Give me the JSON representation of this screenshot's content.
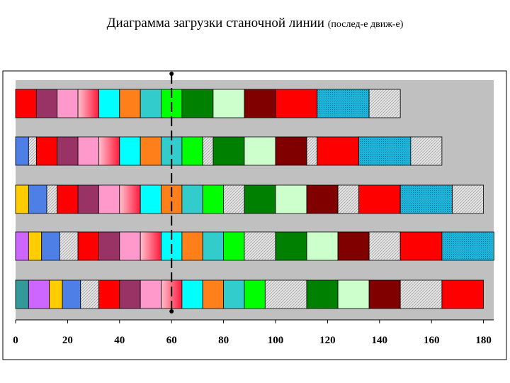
{
  "title": {
    "main": "Диаграмма загрузки станочной линии",
    "sub": "(послед-е движ-е)"
  },
  "chart_data": {
    "type": "bar",
    "orientation": "horizontal-stacked",
    "xlim": [
      0,
      180
    ],
    "xticks": [
      "0",
      "20",
      "40",
      "60",
      "80",
      "100",
      "120",
      "140",
      "160",
      "180"
    ],
    "marker_x": 60,
    "plot_background": "#c0c0c0",
    "rows": [
      {
        "segments": [
          {
            "start": 0,
            "end": 8,
            "color": "#ff0000",
            "pattern": "solid"
          },
          {
            "start": 8,
            "end": 16,
            "color": "#993366",
            "pattern": "solid"
          },
          {
            "start": 16,
            "end": 24,
            "color": "#ff99cc",
            "pattern": "solid"
          },
          {
            "start": 24,
            "end": 32,
            "color": "#ff4d6a",
            "pattern": "gradient"
          },
          {
            "start": 32,
            "end": 40,
            "color": "#00ffff",
            "pattern": "solid"
          },
          {
            "start": 40,
            "end": 48,
            "color": "#ff7f1a",
            "pattern": "solid"
          },
          {
            "start": 48,
            "end": 56,
            "color": "#33cccc",
            "pattern": "solid"
          },
          {
            "start": 56,
            "end": 64,
            "color": "#00ff00",
            "pattern": "solid"
          },
          {
            "start": 64,
            "end": 76,
            "color": "#008000",
            "pattern": "solid"
          },
          {
            "start": 76,
            "end": 88,
            "color": "#ccffcc",
            "pattern": "solid"
          },
          {
            "start": 88,
            "end": 100,
            "color": "#800000",
            "pattern": "solid"
          },
          {
            "start": 100,
            "end": 116,
            "color": "#ff0000",
            "pattern": "solid"
          },
          {
            "start": 116,
            "end": 136,
            "color": "#1ab3d9",
            "pattern": "dotted"
          },
          {
            "start": 136,
            "end": 148,
            "color": "#ff8080",
            "pattern": "hatched"
          }
        ]
      },
      {
        "segments": [
          {
            "start": 0,
            "end": 5,
            "color": "#4d7fe6",
            "pattern": "solid"
          },
          {
            "start": 5,
            "end": 8,
            "color": "#dddddd",
            "pattern": "hatched"
          },
          {
            "start": 8,
            "end": 16,
            "color": "#ff0000",
            "pattern": "solid"
          },
          {
            "start": 16,
            "end": 24,
            "color": "#993366",
            "pattern": "solid"
          },
          {
            "start": 24,
            "end": 32,
            "color": "#ff99cc",
            "pattern": "solid"
          },
          {
            "start": 32,
            "end": 40,
            "color": "#ff4d6a",
            "pattern": "gradient"
          },
          {
            "start": 40,
            "end": 48,
            "color": "#00ffff",
            "pattern": "solid"
          },
          {
            "start": 48,
            "end": 56,
            "color": "#ff7f1a",
            "pattern": "solid"
          },
          {
            "start": 56,
            "end": 64,
            "color": "#33cccc",
            "pattern": "solid"
          },
          {
            "start": 64,
            "end": 72,
            "color": "#00ff00",
            "pattern": "solid"
          },
          {
            "start": 72,
            "end": 76,
            "color": "#dddddd",
            "pattern": "hatched"
          },
          {
            "start": 76,
            "end": 88,
            "color": "#008000",
            "pattern": "solid"
          },
          {
            "start": 88,
            "end": 100,
            "color": "#ccffcc",
            "pattern": "solid"
          },
          {
            "start": 100,
            "end": 112,
            "color": "#800000",
            "pattern": "solid"
          },
          {
            "start": 112,
            "end": 116,
            "color": "#dddddd",
            "pattern": "hatched"
          },
          {
            "start": 116,
            "end": 132,
            "color": "#ff0000",
            "pattern": "solid"
          },
          {
            "start": 132,
            "end": 152,
            "color": "#1ab3d9",
            "pattern": "dotted"
          },
          {
            "start": 152,
            "end": 164,
            "color": "#ff8080",
            "pattern": "hatched"
          }
        ]
      },
      {
        "segments": [
          {
            "start": 0,
            "end": 5,
            "color": "#ffcc00",
            "pattern": "solid"
          },
          {
            "start": 5,
            "end": 12,
            "color": "#4d7fe6",
            "pattern": "solid"
          },
          {
            "start": 12,
            "end": 16,
            "color": "#dddddd",
            "pattern": "hatched"
          },
          {
            "start": 16,
            "end": 24,
            "color": "#ff0000",
            "pattern": "solid"
          },
          {
            "start": 24,
            "end": 32,
            "color": "#993366",
            "pattern": "solid"
          },
          {
            "start": 32,
            "end": 40,
            "color": "#ff99cc",
            "pattern": "solid"
          },
          {
            "start": 40,
            "end": 48,
            "color": "#ff4d6a",
            "pattern": "gradient"
          },
          {
            "start": 48,
            "end": 56,
            "color": "#00ffff",
            "pattern": "solid"
          },
          {
            "start": 56,
            "end": 64,
            "color": "#ff7f1a",
            "pattern": "solid"
          },
          {
            "start": 64,
            "end": 72,
            "color": "#33cccc",
            "pattern": "solid"
          },
          {
            "start": 72,
            "end": 80,
            "color": "#00ff00",
            "pattern": "solid"
          },
          {
            "start": 80,
            "end": 88,
            "color": "#dddddd",
            "pattern": "hatched"
          },
          {
            "start": 88,
            "end": 100,
            "color": "#008000",
            "pattern": "solid"
          },
          {
            "start": 100,
            "end": 112,
            "color": "#ccffcc",
            "pattern": "solid"
          },
          {
            "start": 112,
            "end": 124,
            "color": "#800000",
            "pattern": "solid"
          },
          {
            "start": 124,
            "end": 132,
            "color": "#dddddd",
            "pattern": "hatched"
          },
          {
            "start": 132,
            "end": 148,
            "color": "#ff0000",
            "pattern": "solid"
          },
          {
            "start": 148,
            "end": 168,
            "color": "#1ab3d9",
            "pattern": "dotted"
          },
          {
            "start": 168,
            "end": 180,
            "color": "#ff8080",
            "pattern": "hatched"
          }
        ]
      },
      {
        "segments": [
          {
            "start": 0,
            "end": 5,
            "color": "#cc66ff",
            "pattern": "solid"
          },
          {
            "start": 5,
            "end": 10,
            "color": "#ffcc00",
            "pattern": "solid"
          },
          {
            "start": 10,
            "end": 17,
            "color": "#4d7fe6",
            "pattern": "solid"
          },
          {
            "start": 17,
            "end": 24,
            "color": "#dddddd",
            "pattern": "hatched"
          },
          {
            "start": 24,
            "end": 32,
            "color": "#ff0000",
            "pattern": "solid"
          },
          {
            "start": 32,
            "end": 40,
            "color": "#993366",
            "pattern": "solid"
          },
          {
            "start": 40,
            "end": 48,
            "color": "#ff99cc",
            "pattern": "solid"
          },
          {
            "start": 48,
            "end": 56,
            "color": "#ff4d6a",
            "pattern": "gradient"
          },
          {
            "start": 56,
            "end": 64,
            "color": "#00ffff",
            "pattern": "solid"
          },
          {
            "start": 64,
            "end": 72,
            "color": "#ff7f1a",
            "pattern": "solid"
          },
          {
            "start": 72,
            "end": 80,
            "color": "#33cccc",
            "pattern": "solid"
          },
          {
            "start": 80,
            "end": 88,
            "color": "#00ff00",
            "pattern": "solid"
          },
          {
            "start": 88,
            "end": 100,
            "color": "#dddddd",
            "pattern": "hatched"
          },
          {
            "start": 100,
            "end": 112,
            "color": "#008000",
            "pattern": "solid"
          },
          {
            "start": 112,
            "end": 124,
            "color": "#ccffcc",
            "pattern": "solid"
          },
          {
            "start": 124,
            "end": 136,
            "color": "#800000",
            "pattern": "solid"
          },
          {
            "start": 136,
            "end": 148,
            "color": "#dddddd",
            "pattern": "hatched"
          },
          {
            "start": 148,
            "end": 164,
            "color": "#ff0000",
            "pattern": "solid"
          },
          {
            "start": 164,
            "end": 184,
            "color": "#1ab3d9",
            "pattern": "dotted"
          }
        ]
      },
      {
        "segments": [
          {
            "start": 0,
            "end": 5,
            "color": "#339999",
            "pattern": "solid"
          },
          {
            "start": 5,
            "end": 13,
            "color": "#cc66ff",
            "pattern": "solid"
          },
          {
            "start": 13,
            "end": 18,
            "color": "#ffcc00",
            "pattern": "solid"
          },
          {
            "start": 18,
            "end": 25,
            "color": "#4d7fe6",
            "pattern": "solid"
          },
          {
            "start": 25,
            "end": 32,
            "color": "#dddddd",
            "pattern": "hatched"
          },
          {
            "start": 32,
            "end": 40,
            "color": "#ff0000",
            "pattern": "solid"
          },
          {
            "start": 40,
            "end": 48,
            "color": "#993366",
            "pattern": "solid"
          },
          {
            "start": 48,
            "end": 56,
            "color": "#ff99cc",
            "pattern": "solid"
          },
          {
            "start": 56,
            "end": 64,
            "color": "#ff4d6a",
            "pattern": "gradient"
          },
          {
            "start": 64,
            "end": 72,
            "color": "#00ffff",
            "pattern": "solid"
          },
          {
            "start": 72,
            "end": 80,
            "color": "#ff7f1a",
            "pattern": "solid"
          },
          {
            "start": 80,
            "end": 88,
            "color": "#33cccc",
            "pattern": "solid"
          },
          {
            "start": 88,
            "end": 96,
            "color": "#00ff00",
            "pattern": "solid"
          },
          {
            "start": 96,
            "end": 112,
            "color": "#dddddd",
            "pattern": "hatched"
          },
          {
            "start": 112,
            "end": 124,
            "color": "#008000",
            "pattern": "solid"
          },
          {
            "start": 124,
            "end": 136,
            "color": "#ccffcc",
            "pattern": "solid"
          },
          {
            "start": 136,
            "end": 148,
            "color": "#800000",
            "pattern": "solid"
          },
          {
            "start": 148,
            "end": 164,
            "color": "#dddddd",
            "pattern": "hatched"
          },
          {
            "start": 164,
            "end": 180,
            "color": "#ff0000",
            "pattern": "solid"
          }
        ]
      }
    ]
  }
}
